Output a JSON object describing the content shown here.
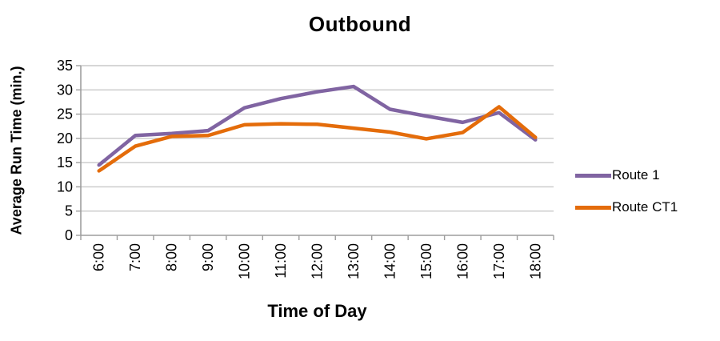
{
  "chart_data": {
    "type": "line",
    "title": "Outbound",
    "xlabel": "Time of Day",
    "ylabel": "Average Run Time (min.)",
    "categories": [
      "6:00",
      "7:00",
      "8:00",
      "9:00",
      "10:00",
      "11:00",
      "12:00",
      "13:00",
      "14:00",
      "15:00",
      "16:00",
      "17:00",
      "18:00"
    ],
    "series": [
      {
        "name": "Route 1",
        "color": "#8064A2",
        "values": [
          14.5,
          20.6,
          21.0,
          21.6,
          26.3,
          28.2,
          29.6,
          30.7,
          26.0,
          24.6,
          23.3,
          25.3,
          19.7
        ]
      },
      {
        "name": "Route CT1",
        "color": "#E46C0A",
        "values": [
          13.3,
          18.4,
          20.4,
          20.6,
          22.8,
          23.0,
          22.9,
          22.1,
          21.3,
          19.9,
          21.2,
          26.5,
          20.2
        ]
      }
    ],
    "ylim": [
      0,
      35
    ],
    "y_ticks": [
      0,
      5,
      10,
      15,
      20,
      25,
      30,
      35
    ],
    "grid": true,
    "legend_position": "right",
    "gridline_color": "#C9C9C9",
    "axis_color": "#9E9E9E",
    "text_color": "#000000",
    "background_color": "#FFFFFF"
  }
}
